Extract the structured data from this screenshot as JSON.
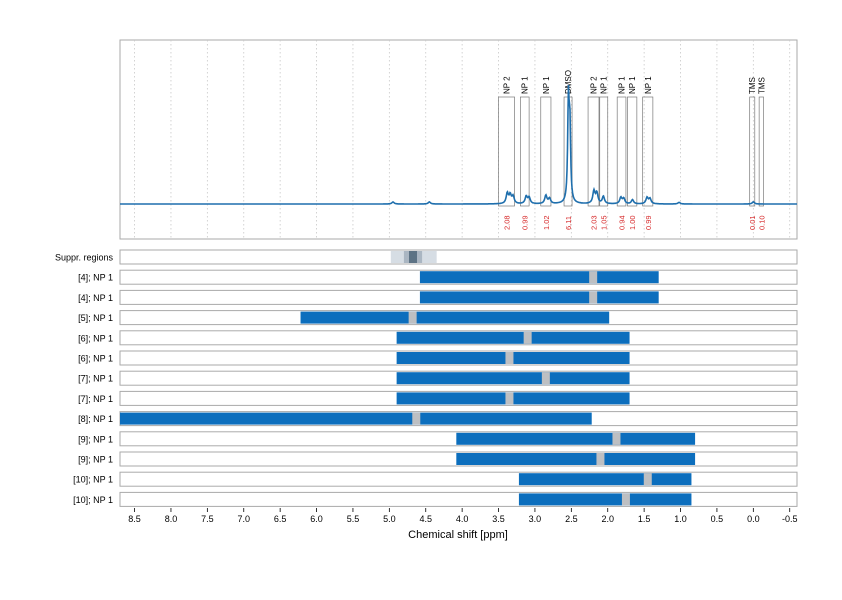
{
  "chart_data": {
    "type": "nmr-spectrum-with-range-bars",
    "xlabel": "Chemical shift [ppm]",
    "x_axis_reversed": true,
    "xlim": [
      8.7,
      -0.6
    ],
    "x_ticks": [
      "8.5",
      "8.0",
      "7.5",
      "7.0",
      "6.5",
      "6.0",
      "5.5",
      "5.0",
      "4.5",
      "4.0",
      "3.5",
      "3.0",
      "2.5",
      "2.0",
      "1.5",
      "1.0",
      "0.5",
      "0.0",
      "-0.5"
    ],
    "x_tick_values": [
      8.5,
      8.0,
      7.5,
      7.0,
      6.5,
      6.0,
      5.5,
      5.0,
      4.5,
      4.0,
      3.5,
      3.0,
      2.5,
      2.0,
      1.5,
      1.0,
      0.5,
      0.0,
      -0.5
    ],
    "grid": "vertical-dotted",
    "colors": {
      "spectrum": "#1f6fad",
      "range_bar": "#0c6ebd",
      "marker": "#bdbfc2",
      "panel_border": "#aaaaaa",
      "integral_text": "#d62728",
      "suppr_light": "#d6dde4",
      "suppr_mid": "#aab6c2",
      "suppr_dark": "#5d7385"
    },
    "spectrum_peaks": [
      {
        "ppm": 3.38,
        "height": 0.1
      },
      {
        "ppm": 3.34,
        "height": 0.08
      },
      {
        "ppm": 3.3,
        "height": 0.07
      },
      {
        "ppm": 3.12,
        "height": 0.07
      },
      {
        "ppm": 3.08,
        "height": 0.06
      },
      {
        "ppm": 2.85,
        "height": 0.08
      },
      {
        "ppm": 2.8,
        "height": 0.05
      },
      {
        "ppm": 2.54,
        "height": 0.95
      },
      {
        "ppm": 2.52,
        "height": 0.7
      },
      {
        "ppm": 2.19,
        "height": 0.12
      },
      {
        "ppm": 2.15,
        "height": 0.1
      },
      {
        "ppm": 2.06,
        "height": 0.07
      },
      {
        "ppm": 1.82,
        "height": 0.06
      },
      {
        "ppm": 1.78,
        "height": 0.05
      },
      {
        "ppm": 1.66,
        "height": 0.04
      },
      {
        "ppm": 1.46,
        "height": 0.06
      },
      {
        "ppm": 1.42,
        "height": 0.05
      },
      {
        "ppm": 4.95,
        "height": 0.02
      },
      {
        "ppm": 4.45,
        "height": 0.02
      },
      {
        "ppm": 1.02,
        "height": 0.015
      },
      {
        "ppm": 0.0,
        "height": 0.02
      }
    ],
    "integral_regions": [
      {
        "label": "NP 2",
        "from": 3.5,
        "to": 3.28,
        "integral": "2.08"
      },
      {
        "label": "NP 1",
        "from": 3.2,
        "to": 3.08,
        "integral": "0.99"
      },
      {
        "label": "NP 1",
        "from": 2.92,
        "to": 2.78,
        "integral": "1.02"
      },
      {
        "label": "DMSO",
        "from": 2.6,
        "to": 2.49,
        "integral": "6.11"
      },
      {
        "label": "NP 2",
        "from": 2.27,
        "to": 2.12,
        "integral": "2.03"
      },
      {
        "label": "NP 1",
        "from": 2.11,
        "to": 2.0,
        "integral": "1.05"
      },
      {
        "label": "NP 1",
        "from": 1.87,
        "to": 1.75,
        "integral": "0.94"
      },
      {
        "label": "NP 1",
        "from": 1.73,
        "to": 1.6,
        "integral": "1.00"
      },
      {
        "label": "NP 1",
        "from": 1.52,
        "to": 1.38,
        "integral": "0.99"
      },
      {
        "label": "TMS",
        "from": 0.05,
        "to": -0.02,
        "integral": "0.01"
      },
      {
        "label": "TMS",
        "from": -0.08,
        "to": -0.14,
        "integral": "0.10"
      }
    ],
    "suppressed_regions": {
      "label": "Suppr. regions",
      "light": [
        4.98,
        4.35
      ],
      "mid": [
        4.8,
        4.55
      ],
      "dark": [
        4.73,
        4.62
      ]
    },
    "range_rows": [
      {
        "label": "[4]; NP 1",
        "from": 4.58,
        "to": 1.3,
        "marker": 2.2
      },
      {
        "label": "[4]; NP 1",
        "from": 4.58,
        "to": 1.3,
        "marker": 2.2
      },
      {
        "label": "[5]; NP 1",
        "from": 6.22,
        "to": 1.98,
        "marker": 4.68
      },
      {
        "label": "[6]; NP 1",
        "from": 4.9,
        "to": 1.7,
        "marker": 3.1
      },
      {
        "label": "[6]; NP 1",
        "from": 4.9,
        "to": 1.7,
        "marker": 3.35
      },
      {
        "label": "[7]; NP 1",
        "from": 4.9,
        "to": 1.7,
        "marker": 2.85
      },
      {
        "label": "[7]; NP 1",
        "from": 4.9,
        "to": 1.7,
        "marker": 3.35
      },
      {
        "label": "[8]; NP 1",
        "from": 8.7,
        "to": 2.22,
        "marker": 4.63
      },
      {
        "label": "[9]; NP 1",
        "from": 4.08,
        "to": 0.8,
        "marker": 1.88
      },
      {
        "label": "[9]; NP 1",
        "from": 4.08,
        "to": 0.8,
        "marker": 2.1
      },
      {
        "label": "[10]; NP 1",
        "from": 3.22,
        "to": 0.85,
        "marker": 1.45
      },
      {
        "label": "[10]; NP 1",
        "from": 3.22,
        "to": 0.85,
        "marker": 1.75
      }
    ]
  }
}
